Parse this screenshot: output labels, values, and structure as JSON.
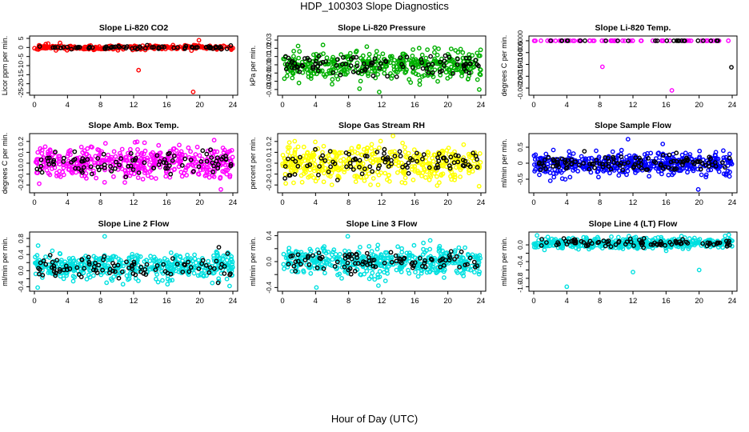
{
  "figure": {
    "title": "HDP_100303  Slope Diagnostics",
    "xlabel": "Hour of Day (UTC)"
  },
  "chart_data": [
    {
      "type": "scatter",
      "title": "Slope Li-820 CO2",
      "ylabel": "Licor ppm per min.",
      "xlim": [
        0,
        24
      ],
      "xticks": [
        "0",
        "4",
        "8",
        "12",
        "16",
        "20",
        "24"
      ],
      "ylim": [
        -25,
        5
      ],
      "yticks": [
        5,
        0,
        -5,
        -10,
        -15,
        -20,
        -25
      ],
      "ytick_labels": [
        "5",
        "0",
        "-5",
        "-10",
        "-15",
        "-20",
        "-25"
      ],
      "color": "#ff0000",
      "base": 0,
      "spread": 0.6,
      "n": 260,
      "black_n": 70,
      "seed": 11,
      "outliers": [
        [
          3.1,
          2.5
        ],
        [
          12.6,
          -12.5
        ],
        [
          19.2,
          -24.5
        ],
        [
          19.9,
          4.0
        ],
        [
          2.6,
          -1.6
        ],
        [
          7.3,
          -0.9
        ],
        [
          10.2,
          1.2
        ],
        [
          13.4,
          -1.4
        ],
        [
          19.0,
          -1.7
        ]
      ]
    },
    {
      "type": "scatter",
      "title": "Slope Li-820 Pressure",
      "ylabel": "kPa per min.",
      "xlim": [
        0,
        24
      ],
      "xticks": [
        "0",
        "4",
        "8",
        "12",
        "16",
        "20",
        "24"
      ],
      "ylim": [
        -0.034,
        0.032
      ],
      "yticks": [
        0.03,
        0.02,
        0.01,
        0.0,
        -0.01,
        -0.02,
        -0.03
      ],
      "ytick_labels": [
        "0.03",
        "0.02",
        "0.01",
        "0.00",
        "-0.01",
        "-0.02",
        "-0.03"
      ],
      "color": "#00b000",
      "base": 0,
      "spread": 0.008,
      "n": 430,
      "black_n": 95,
      "seed": 23,
      "outliers": [
        [
          11.7,
          -0.033
        ],
        [
          23.8,
          -0.03
        ],
        [
          16.6,
          -0.024
        ],
        [
          4.9,
          0.024
        ],
        [
          10.2,
          0.022
        ]
      ]
    },
    {
      "type": "scatter",
      "title": "Slope Li-820 Temp.",
      "ylabel": "degrees C per min.",
      "xlim": [
        0,
        24
      ],
      "xticks": [
        "0",
        "4",
        "8",
        "12",
        "16",
        "20",
        "24"
      ],
      "ylim": [
        -0.0022,
        0.0001
      ],
      "yticks": [
        0.0,
        -0.0005,
        -0.001,
        -0.0015,
        -0.002
      ],
      "ytick_labels": [
        "0.0000",
        "-0.0005",
        "-0.0010",
        "-0.0015",
        "-0.0020"
      ],
      "color": "#ff00ff",
      "base": 0,
      "spread": 1.5e-06,
      "n": 60,
      "black_n": 25,
      "seed": 5,
      "outliers": [
        [
          8.3,
          -0.0011
        ],
        [
          16.7,
          -0.0021
        ]
      ],
      "black_outliers": [
        [
          23.9,
          -0.00112
        ]
      ]
    },
    {
      "type": "scatter",
      "title": "Slope Amb. Box Temp.",
      "ylabel": "degrees C per min.",
      "xlim": [
        0,
        24
      ],
      "xticks": [
        "0",
        "4",
        "8",
        "12",
        "16",
        "20",
        "24"
      ],
      "ylim": [
        -0.25,
        0.25
      ],
      "yticks": [
        0.2,
        0.1,
        0.0,
        -0.1,
        -0.2
      ],
      "ytick_labels": [
        "0.2",
        "0.1",
        "0.0",
        "-0.1",
        "-0.2"
      ],
      "color": "#ff00ff",
      "base": 0,
      "spread": 0.075,
      "n": 460,
      "black_n": 95,
      "seed": 41,
      "outliers": []
    },
    {
      "type": "scatter",
      "title": "Slope Gas Stream RH",
      "ylabel": "percent per min.",
      "xlim": [
        0,
        24
      ],
      "xticks": [
        "0",
        "4",
        "8",
        "12",
        "16",
        "20",
        "24"
      ],
      "ylim": [
        -0.25,
        0.25
      ],
      "yticks": [
        0.2,
        0.1,
        0.0,
        -0.1,
        -0.2
      ],
      "ytick_labels": [
        "0.2",
        "0.1",
        "0.0",
        "-0.1",
        "-0.2"
      ],
      "color": "#ffff00",
      "base": 0,
      "spread": 0.08,
      "n": 460,
      "black_n": 95,
      "seed": 59,
      "outliers": []
    },
    {
      "type": "scatter",
      "title": "Slope Sample Flow",
      "ylabel": "ml/min per min.",
      "xlim": [
        0,
        24
      ],
      "xticks": [
        "0",
        "4",
        "8",
        "12",
        "16",
        "20",
        "24"
      ],
      "ylim": [
        -0.85,
        0.85
      ],
      "yticks": [
        0.5,
        0.0,
        -0.5
      ],
      "ytick_labels": [
        "0.5",
        "0",
        "-0.5"
      ],
      "color": "#0000ff",
      "base": 0,
      "spread": 0.17,
      "n": 460,
      "black_n": 110,
      "seed": 73,
      "outliers": [
        [
          11.4,
          0.75
        ],
        [
          19.9,
          -0.82
        ],
        [
          2.0,
          -0.55
        ],
        [
          15.6,
          0.6
        ]
      ]
    },
    {
      "type": "scatter",
      "title": "Slope Line 2 Flow",
      "ylabel": "ml/min per min.",
      "xlim": [
        0,
        24
      ],
      "xticks": [
        "0",
        "4",
        "8",
        "12",
        "16",
        "20",
        "24"
      ],
      "ylim": [
        -0.45,
        0.9
      ],
      "yticks": [
        0.8,
        0.6,
        0.4,
        0.2,
        0.0,
        -0.2,
        -0.4
      ],
      "ytick_labels": [
        "0.8",
        "",
        "0.4",
        "",
        "0.0",
        "",
        "-0.4"
      ],
      "color": "#00e0e0",
      "base": 0.1,
      "spread": 0.17,
      "n": 460,
      "black_n": 95,
      "seed": 97,
      "outliers": [
        [
          8.5,
          0.85
        ],
        [
          0.4,
          -0.42
        ],
        [
          23.6,
          -0.38
        ]
      ]
    },
    {
      "type": "scatter",
      "title": "Slope Line 3 Flow",
      "ylabel": "ml/min per min.",
      "xlim": [
        0,
        24
      ],
      "xticks": [
        "0",
        "4",
        "8",
        "12",
        "16",
        "20",
        "24"
      ],
      "ylim": [
        -0.42,
        0.42
      ],
      "yticks": [
        0.4,
        0.2,
        0.0,
        -0.2,
        -0.4
      ],
      "ytick_labels": [
        "0.4",
        "",
        "0.0",
        "",
        "-0.4"
      ],
      "color": "#00e0e0",
      "base": 0,
      "spread": 0.1,
      "n": 460,
      "black_n": 95,
      "seed": 131,
      "outliers": [
        [
          7.9,
          0.39
        ],
        [
          11.6,
          -0.37
        ],
        [
          4.1,
          -0.4
        ]
      ]
    },
    {
      "type": "scatter",
      "title": "Slope Line 4 (LT) Flow",
      "ylabel": "ml/min per min.",
      "xlim": [
        0,
        24
      ],
      "xticks": [
        "0",
        "4",
        "8",
        "12",
        "16",
        "20",
        "24"
      ],
      "ylim": [
        -1.05,
        0.25
      ],
      "yticks": [
        0.0,
        -0.2,
        -0.4,
        -0.6,
        -0.8,
        -1.0
      ],
      "ytick_labels": [
        "0.0",
        "",
        "-0.4",
        "",
        "-0.8",
        "-1.0"
      ],
      "color": "#00e0e0",
      "base": 0.04,
      "spread": 0.06,
      "n": 430,
      "black_n": 85,
      "seed": 157,
      "outliers": [
        [
          4.0,
          -1.0
        ],
        [
          12.0,
          -0.65
        ],
        [
          20.0,
          -0.6
        ],
        [
          1.3,
          -0.12
        ]
      ]
    }
  ]
}
